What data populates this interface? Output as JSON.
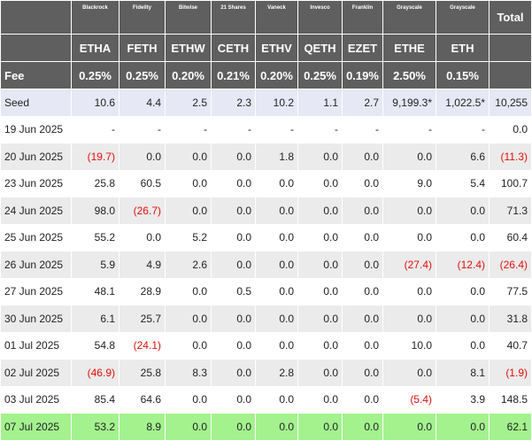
{
  "issuers": [
    "Blackrock",
    "Fidelity",
    "Bitwise",
    "21 Shares",
    "Vaneck",
    "Invesco",
    "Franklin",
    "Grayscale",
    "Grayscale"
  ],
  "total_label": "Total",
  "tickers": [
    "ETHA",
    "FETH",
    "ETHW",
    "CETH",
    "ETHV",
    "QETH",
    "EZET",
    "ETHE",
    "ETH"
  ],
  "fee_label": "Fee",
  "fees": [
    "0.25%",
    "0.25%",
    "0.20%",
    "0.21%",
    "0.20%",
    "0.25%",
    "0.19%",
    "2.50%",
    "0.15%"
  ],
  "rows": [
    {
      "label": "Seed",
      "values": [
        "10.6",
        "4.4",
        "2.5",
        "2.3",
        "10.2",
        "1.1",
        "2.7",
        "9,199.3*",
        "1,022.5*"
      ],
      "total": "10,255"
    },
    {
      "label": "19 Jun 2025",
      "values": [
        "-",
        "-",
        "-",
        "-",
        "-",
        "-",
        "-",
        "-",
        "-"
      ],
      "total": "0.0"
    },
    {
      "label": "20 Jun 2025",
      "values": [
        "(19.7)",
        "0.0",
        "0.0",
        "0.0",
        "1.8",
        "0.0",
        "0.0",
        "0.0",
        "6.6"
      ],
      "total": "(11.3)"
    },
    {
      "label": "23 Jun 2025",
      "values": [
        "25.8",
        "60.5",
        "0.0",
        "0.0",
        "0.0",
        "0.0",
        "0.0",
        "9.0",
        "5.4"
      ],
      "total": "100.7"
    },
    {
      "label": "24 Jun 2025",
      "values": [
        "98.0",
        "(26.7)",
        "0.0",
        "0.0",
        "0.0",
        "0.0",
        "0.0",
        "0.0",
        "0.0"
      ],
      "total": "71.3"
    },
    {
      "label": "25 Jun 2025",
      "values": [
        "55.2",
        "0.0",
        "5.2",
        "0.0",
        "0.0",
        "0.0",
        "0.0",
        "0.0",
        "0.0"
      ],
      "total": "60.4"
    },
    {
      "label": "26 Jun 2025",
      "values": [
        "5.9",
        "4.9",
        "2.6",
        "0.0",
        "0.0",
        "0.0",
        "0.0",
        "(27.4)",
        "(12.4)"
      ],
      "total": "(26.4)"
    },
    {
      "label": "27 Jun 2025",
      "values": [
        "48.1",
        "28.9",
        "0.0",
        "0.5",
        "0.0",
        "0.0",
        "0.0",
        "0.0",
        "0.0"
      ],
      "total": "77.5"
    },
    {
      "label": "30 Jun 2025",
      "values": [
        "6.1",
        "25.7",
        "0.0",
        "0.0",
        "0.0",
        "0.0",
        "0.0",
        "0.0",
        "0.0"
      ],
      "total": "31.8"
    },
    {
      "label": "01 Jul 2025",
      "values": [
        "54.8",
        "(24.1)",
        "0.0",
        "0.0",
        "0.0",
        "0.0",
        "0.0",
        "10.0",
        "0.0"
      ],
      "total": "40.7"
    },
    {
      "label": "02 Jul 2025",
      "values": [
        "(46.9)",
        "25.8",
        "8.3",
        "0.0",
        "2.8",
        "0.0",
        "0.0",
        "0.0",
        "8.1"
      ],
      "total": "(1.9)"
    },
    {
      "label": "03 Jul 2025",
      "values": [
        "85.4",
        "64.6",
        "0.0",
        "0.0",
        "0.0",
        "0.0",
        "0.0",
        "(5.4)",
        "3.9"
      ],
      "total": "148.5"
    },
    {
      "label": "07 Jul 2025",
      "values": [
        "53.2",
        "8.9",
        "0.0",
        "0.0",
        "0.0",
        "0.0",
        "0.0",
        "0.0",
        "0.0"
      ],
      "total": "62.1"
    }
  ],
  "colors": {
    "header_bg": "#5f5f5f",
    "negative": "#e0100a",
    "seed_bg": "#e6e8f5",
    "alt_row_bg": "#ebebeb",
    "latest_row_bg": "#a3f28e"
  }
}
